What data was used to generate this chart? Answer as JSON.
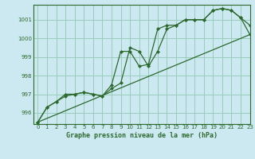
{
  "title": "Graphe pression niveau de la mer (hPa)",
  "background_color": "#cce8f0",
  "grid_color": "#99ccbb",
  "line_color": "#2d6a2d",
  "xlim": [
    -0.5,
    23
  ],
  "ylim": [
    995.4,
    1001.8
  ],
  "yticks": [
    996,
    997,
    998,
    999,
    1000,
    1001
  ],
  "xticks": [
    0,
    1,
    2,
    3,
    4,
    5,
    6,
    7,
    8,
    9,
    10,
    11,
    12,
    13,
    14,
    15,
    16,
    17,
    18,
    19,
    20,
    21,
    22,
    23
  ],
  "series1_marked": {
    "x": [
      0,
      1,
      2,
      3,
      4,
      5,
      6,
      7,
      8,
      9,
      10,
      11,
      12,
      13,
      14,
      15,
      16,
      17,
      18,
      19,
      20,
      21,
      22,
      23
    ],
    "y": [
      995.5,
      996.3,
      996.6,
      996.9,
      997.0,
      997.1,
      997.0,
      996.9,
      997.5,
      999.3,
      999.3,
      998.5,
      998.6,
      1000.5,
      1000.7,
      1000.7,
      1001.0,
      1001.0,
      1001.0,
      1001.5,
      1001.6,
      1001.5,
      1001.1,
      1000.2
    ]
  },
  "series2_marked": {
    "x": [
      0,
      1,
      2,
      3,
      4,
      5,
      6,
      7,
      8,
      9,
      10,
      11,
      12,
      13,
      14,
      15,
      16,
      17,
      18,
      19,
      20,
      21,
      22,
      23
    ],
    "y": [
      995.5,
      996.3,
      996.6,
      997.0,
      997.0,
      997.1,
      997.0,
      996.9,
      997.3,
      997.6,
      999.5,
      999.3,
      998.5,
      999.3,
      1000.5,
      1000.7,
      1001.0,
      1001.0,
      1001.0,
      1001.5,
      1001.6,
      1001.5,
      1001.1,
      1000.7
    ]
  },
  "series3_line": {
    "x": [
      0,
      23
    ],
    "y": [
      995.5,
      1000.2
    ]
  }
}
